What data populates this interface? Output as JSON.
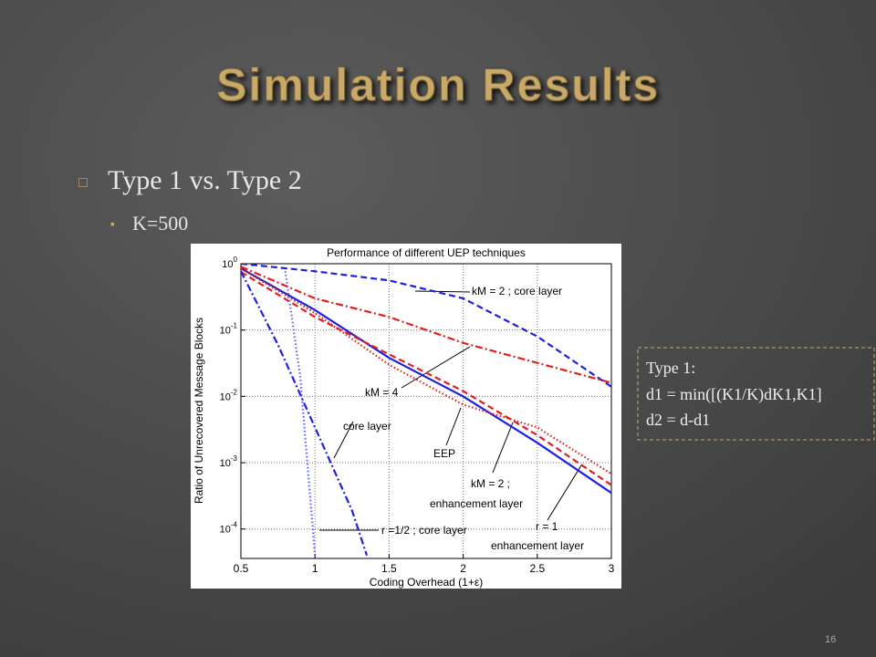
{
  "slide": {
    "title": "Simulation Results",
    "bullets": [
      {
        "symbol": "□",
        "text": "Type 1 vs. Type 2"
      },
      {
        "symbol": "▪",
        "text": "K=500"
      }
    ],
    "note": {
      "lines": [
        "Type 1:",
        "d1 = min([(K1/K)dK1,K1]",
        "d2 = d-d1"
      ]
    },
    "page_number": "16"
  },
  "chart_data": {
    "type": "line",
    "title": "Performance of different UEP techniques",
    "xlabel": "Coding Overhead (1+ε)",
    "ylabel": "Ratio of Unrecovered Message Blocks",
    "xlim": [
      0.5,
      3
    ],
    "xticks": [
      0.5,
      1,
      1.5,
      2,
      2.5,
      3
    ],
    "ylim": [
      3.6e-05,
      1
    ],
    "yscale": "log",
    "yticks": [
      {
        "value": 1,
        "label": "10^0"
      },
      {
        "value": 0.1,
        "label": "10^-1"
      },
      {
        "value": 0.01,
        "label": "10^-2"
      },
      {
        "value": 0.001,
        "label": "10^-3"
      },
      {
        "value": 0.0001,
        "label": "10^-4"
      }
    ],
    "grid": true,
    "series": [
      {
        "color": "#1f1fe0",
        "dash": "solid",
        "x": [
          0.5,
          1,
          1.5,
          2,
          2.5,
          3
        ],
        "values": [
          0.85,
          0.2,
          0.038,
          0.01,
          0.002,
          0.00035
        ]
      },
      {
        "color": "#e02020",
        "dash": "dashed",
        "x": [
          0.5,
          1,
          1.5,
          2,
          2.5,
          3
        ],
        "values": [
          0.75,
          0.157,
          0.043,
          0.012,
          0.0026,
          0.00046
        ]
      },
      {
        "color": "#e02020",
        "dash": "dotted",
        "x": [
          0.5,
          1,
          1.5,
          2,
          2.5,
          3
        ],
        "values": [
          0.85,
          0.18,
          0.03,
          0.0075,
          0.0034,
          0.00068
        ]
      },
      {
        "color": "#1f1fe0",
        "dash": "dashed",
        "x": [
          0.5,
          1,
          1.5,
          2,
          2.5,
          3
        ],
        "values": [
          1,
          0.77,
          0.56,
          0.3,
          0.08,
          0.014
        ]
      },
      {
        "color": "#e02020",
        "dash": "dashdot",
        "x": [
          0.5,
          1,
          1.5,
          2,
          2.5,
          3
        ],
        "values": [
          0.9,
          0.3,
          0.157,
          0.064,
          0.032,
          0.016
        ]
      },
      {
        "color": "#1f1fe0",
        "dash": "dashdot",
        "x": [
          0.5,
          0.75,
          1,
          1.25,
          1.35
        ],
        "values": [
          0.77,
          0.06,
          0.0034,
          0.00019,
          4e-05
        ]
      },
      {
        "color": "#6060ff",
        "dash": "dotted",
        "x": [
          0.8,
          0.9,
          1
        ],
        "values": [
          0.77,
          0.02,
          4e-05
        ]
      }
    ],
    "annotations": [
      "kM = 2 ; core layer",
      "kM = 4",
      "core layer",
      "EEP",
      "kM = 2 ;",
      "enhancement layer",
      "r =1/2 ; core layer",
      "r = 1",
      "enhancement layer"
    ]
  }
}
